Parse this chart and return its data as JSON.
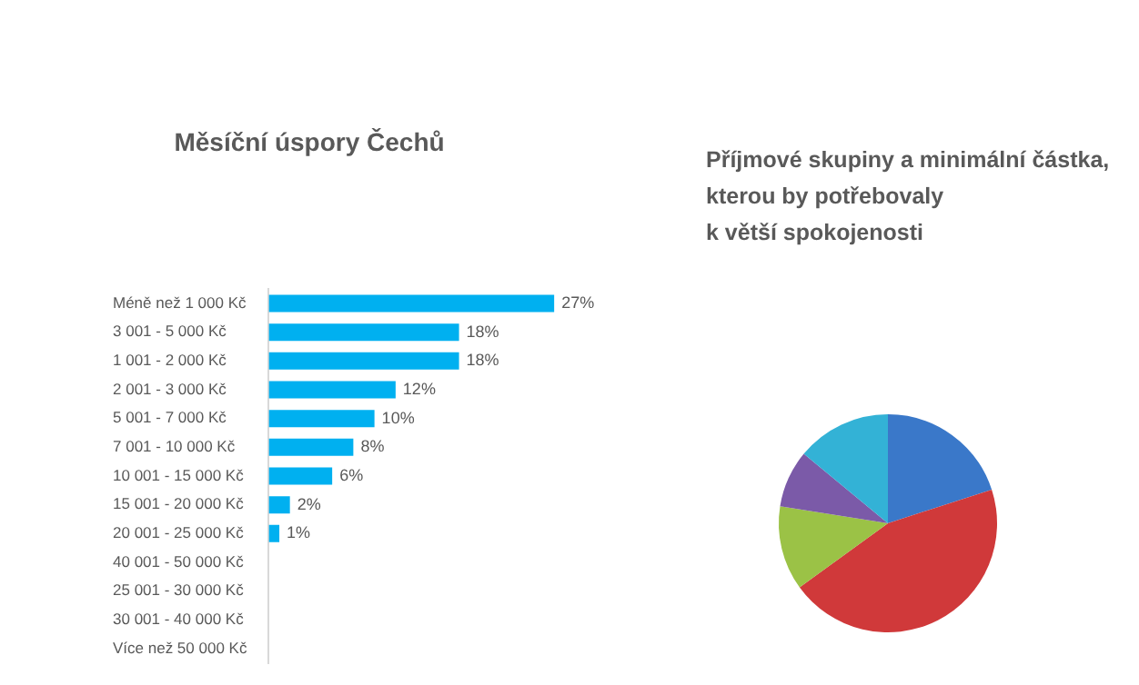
{
  "chart_data": [
    {
      "type": "bar",
      "orientation": "horizontal",
      "title": "Měsíční úspory Čechů",
      "categories": [
        "Méně než 1 000 Kč",
        "3 001 - 5 000 Kč",
        "1 001 - 2 000 Kč",
        "2 001 - 3 000 Kč",
        "5 001 - 7 000 Kč",
        "7 001 - 10 000 Kč",
        "10 001 - 15 000 Kč",
        "15 001 - 20 000 Kč",
        "20 001 - 25 000 Kč",
        "40 001 - 50 000 Kč",
        "25 001 - 30 000 Kč",
        "30 001 - 40 000 Kč",
        "Více než 50 000 Kč"
      ],
      "values": [
        27,
        18,
        18,
        12,
        10,
        8,
        6,
        2,
        1,
        0,
        0,
        0,
        0
      ],
      "value_labels": [
        "27%",
        "18%",
        "18%",
        "12%",
        "10%",
        "8%",
        "6%",
        "2%",
        "1%",
        null,
        null,
        null,
        null
      ],
      "color": "#00b0f0",
      "tick_labels": "y",
      "grid": false,
      "legend": false
    },
    {
      "type": "pie",
      "title": "Příjmové skupiny a minimální částka,\nkterou by potřebovaly\nk větší spokojenosti",
      "categories": [
        null,
        null,
        null,
        null,
        null
      ],
      "values": [
        20,
        45,
        12.5,
        8.5,
        14
      ],
      "colors": [
        "#3a78c9",
        "#d0393a",
        "#9bc246",
        "#7b5aa8",
        "#33b2d6"
      ],
      "legend": false
    }
  ]
}
